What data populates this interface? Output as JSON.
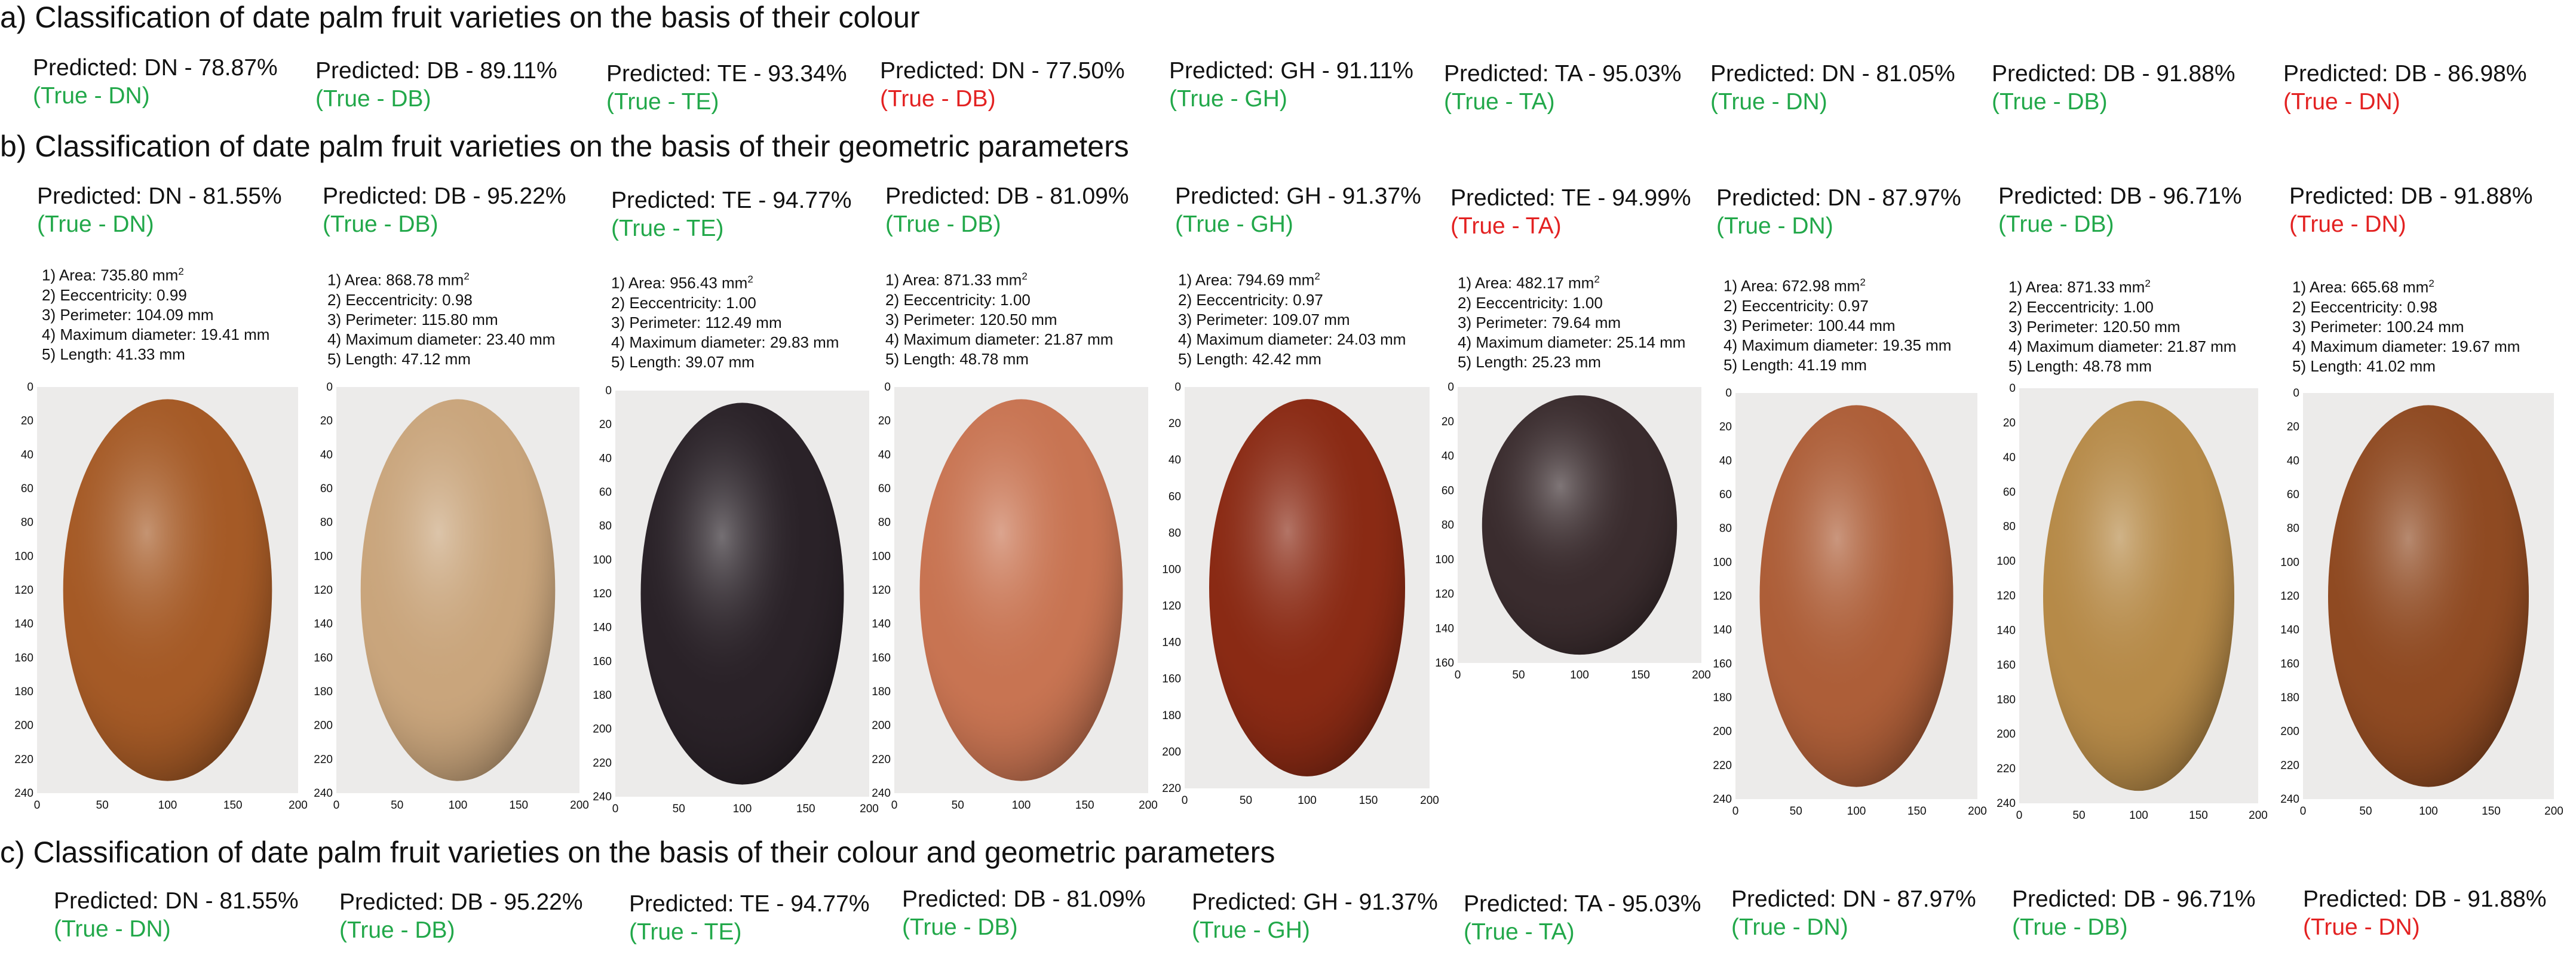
{
  "sections": {
    "a_title": "a) Classification of date palm fruit varieties on the basis of their colour",
    "b_title": "b) Classification of date palm fruit varieties on the basis of their geometric parameters",
    "c_title": "c) Classification of date palm fruit varieties on the basis of their colour and geometric parameters"
  },
  "row_a": [
    {
      "pred": "Predicted: DN - 78.87%",
      "truth": "(True - DN)",
      "correct": true
    },
    {
      "pred": "Predicted: DB - 89.11%",
      "truth": "(True - DB)",
      "correct": true
    },
    {
      "pred": "Predicted: TE - 93.34%",
      "truth": "(True - TE)",
      "correct": true
    },
    {
      "pred": "Predicted: DN - 77.50%",
      "truth": "(True - DB)",
      "correct": false
    },
    {
      "pred": "Predicted: GH - 91.11%",
      "truth": "(True - GH)",
      "correct": true
    },
    {
      "pred": "Predicted: TA - 95.03%",
      "truth": "(True - TA)",
      "correct": true
    },
    {
      "pred": "Predicted: DN - 81.05%",
      "truth": "(True - DN)",
      "correct": true
    },
    {
      "pred": "Predicted: DB - 91.88%",
      "truth": "(True - DB)",
      "correct": true
    },
    {
      "pred": "Predicted: DB - 86.98%",
      "truth": "(True - DN)",
      "correct": false
    }
  ],
  "row_b": [
    {
      "pred": "Predicted: DN - 81.55%",
      "truth": "(True - DN)",
      "correct": true,
      "area": "1) Area: 735.80 mm",
      "ecc": "2) Eeccentricity: 0.99",
      "perim": "3) Perimeter: 104.09 mm",
      "maxd": "4) Maximum diameter: 19.41 mm",
      "len": "5) Length: 41.33 mm",
      "color": "#a55a26",
      "yticks": [
        "0",
        "20",
        "40",
        "60",
        "80",
        "100",
        "120",
        "140",
        "160",
        "180",
        "200",
        "220",
        "240"
      ],
      "xticks": [
        "0",
        "50",
        "100",
        "150",
        "200"
      ]
    },
    {
      "pred": "Predicted: DB - 95.22%",
      "truth": "(True - DB)",
      "correct": true,
      "area": "1) Area: 868.78 mm",
      "ecc": "2) Eeccentricity: 0.98",
      "perim": "3) Perimeter: 115.80 mm",
      "maxd": "4) Maximum diameter: 23.40 mm",
      "len": "5) Length: 47.12 mm",
      "color": "#c9a57c",
      "yticks": [
        "0",
        "20",
        "40",
        "60",
        "80",
        "100",
        "120",
        "140",
        "160",
        "180",
        "200",
        "220",
        "240"
      ],
      "xticks": [
        "0",
        "50",
        "100",
        "150",
        "200"
      ]
    },
    {
      "pred": "Predicted: TE - 94.77%",
      "truth": "(True - TE)",
      "correct": true,
      "area": "1) Area: 956.43 mm",
      "ecc": "2) Eeccentricity: 1.00",
      "perim": "3) Perimeter: 112.49 mm",
      "maxd": "4) Maximum diameter: 29.83 mm",
      "len": "5) Length: 39.07 mm",
      "color": "#2a2228",
      "yticks": [
        "0",
        "20",
        "40",
        "60",
        "80",
        "100",
        "120",
        "140",
        "160",
        "180",
        "200",
        "220",
        "240"
      ],
      "xticks": [
        "0",
        "50",
        "100",
        "150",
        "200"
      ]
    },
    {
      "pred": "Predicted: DB - 81.09%",
      "truth": "(True - DB)",
      "correct": true,
      "area": "1) Area: 871.33 mm",
      "ecc": "2) Eeccentricity: 1.00",
      "perim": "3) Perimeter: 120.50 mm",
      "maxd": "4) Maximum diameter: 21.87 mm",
      "len": "5) Length: 48.78 mm",
      "color": "#c87452",
      "yticks": [
        "0",
        "20",
        "40",
        "60",
        "80",
        "100",
        "120",
        "140",
        "160",
        "180",
        "200",
        "220",
        "240"
      ],
      "xticks": [
        "0",
        "50",
        "100",
        "150",
        "200"
      ]
    },
    {
      "pred": "Predicted: GH - 91.37%",
      "truth": "(True - GH)",
      "correct": true,
      "area": "1) Area: 794.69 mm",
      "ecc": "2) Eeccentricity: 0.97",
      "perim": "3) Perimeter: 109.07 mm",
      "maxd": "4) Maximum diameter: 24.03 mm",
      "len": "5) Length: 42.42 mm",
      "color": "#8a2a14",
      "yticks": [
        "0",
        "20",
        "40",
        "60",
        "80",
        "100",
        "120",
        "140",
        "160",
        "180",
        "200",
        "220"
      ],
      "xticks": [
        "0",
        "50",
        "100",
        "150",
        "200"
      ]
    },
    {
      "pred": "Predicted: TE - 94.99%",
      "truth": "(True - TA)",
      "correct": false,
      "area": "1) Area: 482.17 mm",
      "ecc": "2) Eeccentricity: 1.00",
      "perim": "3) Perimeter: 79.64 mm",
      "maxd": "4) Maximum diameter: 25.14 mm",
      "len": "5) Length: 25.23 mm",
      "color": "#3a2c2e",
      "yticks": [
        "0",
        "20",
        "40",
        "60",
        "80",
        "100",
        "120",
        "140",
        "160"
      ],
      "xticks": [
        "0",
        "50",
        "100",
        "150",
        "200"
      ]
    },
    {
      "pred": "Predicted: DN - 87.97%",
      "truth": "(True - DN)",
      "correct": true,
      "area": "1) Area: 672.98 mm",
      "ecc": "2) Eeccentricity: 0.97",
      "perim": "3) Perimeter: 100.44 mm",
      "maxd": "4) Maximum diameter: 19.35 mm",
      "len": "5) Length: 41.19 mm",
      "color": "#ad5e38",
      "yticks": [
        "0",
        "20",
        "40",
        "60",
        "80",
        "100",
        "120",
        "140",
        "160",
        "180",
        "200",
        "220",
        "240"
      ],
      "xticks": [
        "0",
        "50",
        "100",
        "150",
        "200"
      ]
    },
    {
      "pred": "Predicted: DB - 96.71%",
      "truth": "(True - DB)",
      "correct": true,
      "area": "1) Area: 871.33 mm",
      "ecc": "2) Eeccentricity: 1.00",
      "perim": "3) Perimeter: 120.50 mm",
      "maxd": "4) Maximum diameter: 21.87 mm",
      "len": "5) Length: 48.78 mm",
      "color": "#b68a48",
      "yticks": [
        "0",
        "20",
        "40",
        "60",
        "80",
        "100",
        "120",
        "140",
        "160",
        "180",
        "200",
        "220",
        "240"
      ],
      "xticks": [
        "0",
        "50",
        "100",
        "150",
        "200"
      ]
    },
    {
      "pred": "Predicted: DB - 91.88%",
      "truth": "(True - DN)",
      "correct": false,
      "area": "1) Area: 665.68 mm",
      "ecc": "2) Eeccentricity: 0.98",
      "perim": "3) Perimeter: 100.24 mm",
      "maxd": "4) Maximum diameter: 19.67 mm",
      "len": "5) Length: 41.02 mm",
      "color": "#8f4a22",
      "yticks": [
        "0",
        "20",
        "40",
        "60",
        "80",
        "100",
        "120",
        "140",
        "160",
        "180",
        "200",
        "220",
        "240"
      ],
      "xticks": [
        "0",
        "50",
        "100",
        "150",
        "200"
      ]
    }
  ],
  "area_unit_sup": "2",
  "row_c": [
    {
      "pred": "Predicted: DN - 81.55%",
      "truth": "(True - DN)",
      "correct": true
    },
    {
      "pred": "Predicted: DB - 95.22%",
      "truth": "(True - DB)",
      "correct": true
    },
    {
      "pred": "Predicted: TE - 94.77%",
      "truth": "(True - TE)",
      "correct": true
    },
    {
      "pred": "Predicted: DB - 81.09%",
      "truth": "(True - DB)",
      "correct": true
    },
    {
      "pred": "Predicted: GH - 91.37%",
      "truth": "(True - GH)",
      "correct": true
    },
    {
      "pred": "Predicted: TA - 95.03%",
      "truth": "(True - TA)",
      "correct": true
    },
    {
      "pred": "Predicted: DN - 87.97%",
      "truth": "(True - DN)",
      "correct": true
    },
    {
      "pred": "Predicted: DB - 96.71%",
      "truth": "(True - DB)",
      "correct": true
    },
    {
      "pred": "Predicted: DB - 91.88%",
      "truth": "(True - DN)",
      "correct": false
    }
  ]
}
